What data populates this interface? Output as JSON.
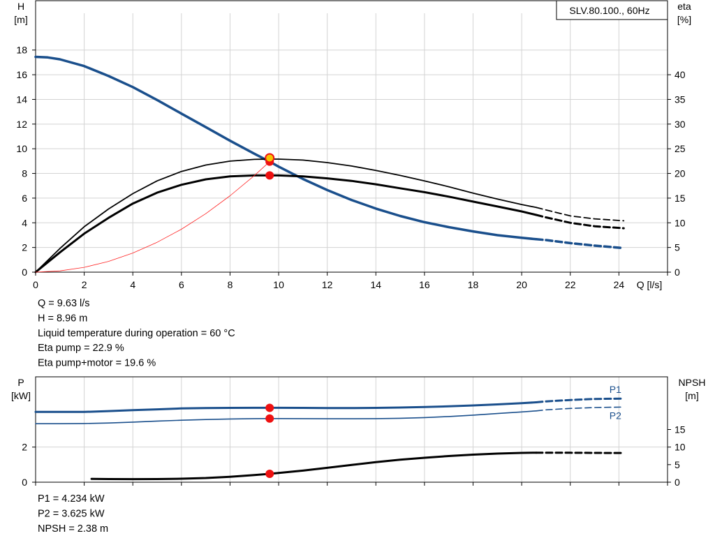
{
  "chart_data": [
    {
      "type": "line",
      "title": "SLV.80.100., 60Hz",
      "xlabel": "Q [l/s]",
      "ylabel_left": [
        "H",
        "[m]"
      ],
      "ylabel_right": [
        "eta",
        "[%]"
      ],
      "xlim": [
        0,
        26
      ],
      "ylim_left": [
        0,
        22
      ],
      "ylim_right": [
        0,
        55
      ],
      "x_ticks": [
        0,
        2,
        4,
        6,
        8,
        10,
        12,
        14,
        16,
        18,
        20,
        22,
        24
      ],
      "y_ticks_left": [
        0,
        2,
        4,
        6,
        8,
        10,
        12,
        14,
        16,
        18
      ],
      "y_ticks_right": [
        0,
        5,
        10,
        15,
        20,
        25,
        30,
        35,
        40
      ],
      "grid": true,
      "series": [
        {
          "axis": "left",
          "color": "#1a4f8c",
          "width": 3.5,
          "dashed_from": 20.6,
          "x": [
            0,
            0.5,
            1,
            2,
            3,
            4,
            5,
            6,
            7,
            8,
            9,
            9.63,
            10,
            11,
            12,
            13,
            14,
            15,
            16,
            17,
            18,
            19,
            20,
            20.6,
            21,
            22,
            23,
            24.2
          ],
          "y": [
            17.45,
            17.4,
            17.25,
            16.7,
            15.9,
            15.0,
            13.95,
            12.85,
            11.75,
            10.65,
            9.6,
            8.96,
            8.55,
            7.55,
            6.65,
            5.85,
            5.15,
            4.55,
            4.05,
            3.65,
            3.3,
            3.0,
            2.78,
            2.67,
            2.6,
            2.35,
            2.15,
            1.95
          ]
        },
        {
          "axis": "right",
          "color": "#000000",
          "width": 1.8,
          "dashed_from": 20.6,
          "x": [
            0,
            1,
            2,
            3,
            4,
            5,
            6,
            7,
            8,
            9,
            9.63,
            10,
            11,
            12,
            13,
            14,
            15,
            16,
            17,
            18,
            19,
            20,
            20.6,
            21,
            22,
            23,
            24.2
          ],
          "y": [
            0,
            4.8,
            9.2,
            12.8,
            15.9,
            18.5,
            20.4,
            21.7,
            22.5,
            22.85,
            22.9,
            22.9,
            22.7,
            22.2,
            21.5,
            20.6,
            19.6,
            18.5,
            17.3,
            16.0,
            14.8,
            13.7,
            13.1,
            12.6,
            11.4,
            10.8,
            10.4
          ]
        },
        {
          "axis": "right",
          "color": "#000000",
          "width": 3,
          "dashed_from": 20.6,
          "x": [
            0,
            1,
            2,
            3,
            4,
            5,
            6,
            7,
            8,
            9,
            9.63,
            10,
            11,
            12,
            13,
            14,
            15,
            16,
            17,
            18,
            19,
            20,
            20.6,
            21,
            22,
            23,
            24.2
          ],
          "y": [
            0,
            4.0,
            7.8,
            11.0,
            13.9,
            16.1,
            17.7,
            18.8,
            19.4,
            19.6,
            19.6,
            19.6,
            19.4,
            19.0,
            18.5,
            17.8,
            17.0,
            16.2,
            15.3,
            14.3,
            13.3,
            12.3,
            11.6,
            11.1,
            10.0,
            9.3,
            8.9
          ]
        },
        {
          "axis": "left",
          "color": "#ff2020",
          "width": 0.8,
          "x": [
            0,
            1,
            2,
            3,
            4,
            5,
            6,
            7,
            8,
            9,
            9.63
          ],
          "y": [
            0,
            0.1,
            0.39,
            0.87,
            1.55,
            2.42,
            3.48,
            4.74,
            6.19,
            7.83,
            8.96
          ]
        }
      ],
      "operating_points": [
        {
          "axis": "left",
          "x": 9.63,
          "y": 8.96
        },
        {
          "axis": "left",
          "x": 9.63,
          "y": 9.25
        },
        {
          "axis": "right",
          "x": 9.63,
          "y": 19.6
        }
      ]
    },
    {
      "type": "line",
      "title": "",
      "ylabel_left": [
        "P",
        "[kW]"
      ],
      "ylabel_right": [
        "NPSH",
        "[m]"
      ],
      "xlim": [
        0,
        26
      ],
      "ylim_left": [
        0,
        6
      ],
      "ylim_right": [
        0,
        30
      ],
      "x_ticks": [
        0,
        2,
        4,
        6,
        8,
        10,
        12,
        14,
        16,
        18,
        20,
        22,
        24
      ],
      "y_ticks_left": [
        0,
        2
      ],
      "y_ticks_right": [
        0,
        5,
        10,
        15
      ],
      "grid": true,
      "series": [
        {
          "name": "P1",
          "axis": "left",
          "color": "#1a4f8c",
          "width": 3,
          "dashed_from": 20.6,
          "x": [
            0,
            1,
            2,
            3,
            4,
            5,
            6,
            7,
            8,
            9,
            9.63,
            10,
            11,
            12,
            13,
            14,
            15,
            16,
            17,
            18,
            19,
            20,
            20.6,
            21,
            22,
            23,
            24.2
          ],
          "y": [
            4.0,
            4.0,
            4.0,
            4.05,
            4.1,
            4.15,
            4.2,
            4.22,
            4.23,
            4.234,
            4.234,
            4.234,
            4.23,
            4.22,
            4.22,
            4.23,
            4.25,
            4.28,
            4.32,
            4.37,
            4.43,
            4.5,
            4.55,
            4.6,
            4.68,
            4.74,
            4.76
          ]
        },
        {
          "name": "P2",
          "axis": "left",
          "color": "#1a4f8c",
          "width": 1.6,
          "dashed_from": 20.6,
          "x": [
            0,
            1,
            2,
            3,
            4,
            5,
            6,
            7,
            8,
            9,
            9.63,
            10,
            11,
            12,
            13,
            14,
            15,
            16,
            17,
            18,
            19,
            20,
            20.6,
            21,
            22,
            23,
            24.2
          ],
          "y": [
            3.33,
            3.33,
            3.34,
            3.37,
            3.42,
            3.48,
            3.53,
            3.57,
            3.6,
            3.62,
            3.625,
            3.625,
            3.62,
            3.61,
            3.61,
            3.62,
            3.64,
            3.68,
            3.74,
            3.82,
            3.91,
            4.0,
            4.06,
            4.12,
            4.2,
            4.25,
            4.28
          ]
        },
        {
          "axis": "right",
          "color": "#000000",
          "width": 3,
          "dashed_from": 20.6,
          "x": [
            2.3,
            3,
            4,
            5,
            6,
            7,
            8,
            9,
            9.63,
            10,
            11,
            12,
            13,
            14,
            15,
            16,
            17,
            18,
            19,
            20,
            20.6,
            21,
            22,
            23,
            24.2
          ],
          "y": [
            0.95,
            0.9,
            0.88,
            0.9,
            1.0,
            1.2,
            1.55,
            2.05,
            2.38,
            2.62,
            3.3,
            4.1,
            4.9,
            5.7,
            6.4,
            6.95,
            7.45,
            7.85,
            8.15,
            8.35,
            8.4,
            8.4,
            8.38,
            8.35,
            8.3
          ]
        }
      ],
      "operating_points": [
        {
          "axis": "left",
          "x": 9.63,
          "y": 4.234
        },
        {
          "axis": "left",
          "x": 9.63,
          "y": 3.625
        },
        {
          "axis": "right",
          "x": 9.63,
          "y": 2.38
        }
      ]
    }
  ],
  "info_top": [
    "Q = 9.63 l/s",
    "H = 8.96 m",
    "Liquid temperature during operation = 60 °C",
    "Eta pump = 22.9 %",
    "Eta pump+motor = 19.6 %"
  ],
  "info_bottom": [
    "P1 = 4.234 kW",
    "P2 = 3.625 kW",
    "NPSH = 2.38 m"
  ]
}
